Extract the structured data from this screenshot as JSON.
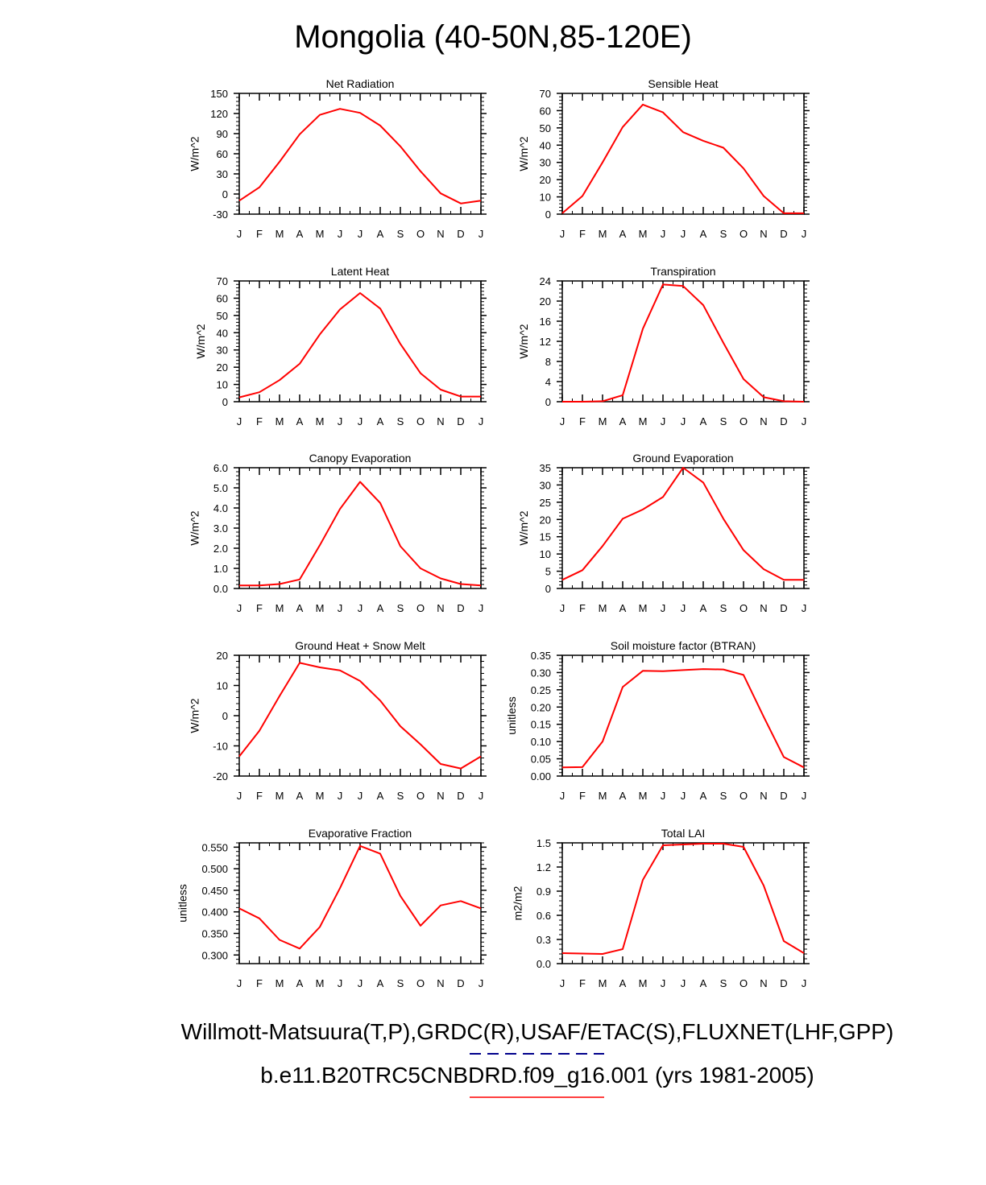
{
  "title": "Mongolia (40-50N,85-120E)",
  "footer": {
    "line1": "Willmott-Matsuura(T,P),GRDC(R),USAF/ETAC(S),FLUXNET(LHF,GPP)",
    "line2": "b.e11.B20TRC5CNBDRD.f09_g16.001 (yrs 1981-2005)"
  },
  "colors": {
    "series": "#ff0000",
    "obs_legend": "#00008b",
    "axis": "#000000"
  },
  "chart_data": [
    {
      "type": "line",
      "title": "Net Radiation",
      "ylabel": "W/m^2",
      "categories": [
        "J",
        "F",
        "M",
        "A",
        "M",
        "J",
        "J",
        "A",
        "S",
        "O",
        "N",
        "D",
        "J"
      ],
      "ylim": [
        -30,
        150
      ],
      "yticks": [
        "-30",
        "0",
        "30",
        "60",
        "90",
        "120",
        "150"
      ],
      "values": [
        -10,
        10,
        48,
        89,
        118,
        127,
        121,
        102,
        71,
        34,
        1,
        -14,
        -10
      ]
    },
    {
      "type": "line",
      "title": "Sensible Heat",
      "ylabel": "W/m^2",
      "categories": [
        "J",
        "F",
        "M",
        "A",
        "M",
        "J",
        "J",
        "A",
        "S",
        "O",
        "N",
        "D",
        "J"
      ],
      "ylim": [
        0,
        70
      ],
      "yticks": [
        "0",
        "10",
        "20",
        "30",
        "40",
        "50",
        "60",
        "70"
      ],
      "values": [
        0.5,
        10.5,
        30,
        50.5,
        63.5,
        59,
        47.5,
        42.5,
        38.5,
        26.5,
        10.5,
        0.5,
        0.5
      ]
    },
    {
      "type": "line",
      "title": "Latent Heat",
      "ylabel": "W/m^2",
      "categories": [
        "J",
        "F",
        "M",
        "A",
        "M",
        "J",
        "J",
        "A",
        "S",
        "O",
        "N",
        "D",
        "J"
      ],
      "ylim": [
        0,
        70
      ],
      "yticks": [
        "0",
        "10",
        "20",
        "30",
        "40",
        "50",
        "60",
        "70"
      ],
      "values": [
        2.5,
        5.5,
        12.5,
        22,
        39,
        53.5,
        63,
        54,
        33.5,
        16.5,
        7,
        3,
        3
      ]
    },
    {
      "type": "line",
      "title": "Transpiration",
      "ylabel": "W/m^2",
      "categories": [
        "J",
        "F",
        "M",
        "A",
        "M",
        "J",
        "J",
        "A",
        "S",
        "O",
        "N",
        "D",
        "J"
      ],
      "ylim": [
        0,
        24
      ],
      "yticks": [
        "0",
        "4",
        "8",
        "12",
        "16",
        "20",
        "24"
      ],
      "values": [
        0,
        0,
        0.1,
        1.3,
        14.5,
        23.3,
        23,
        19.2,
        11.7,
        4.5,
        0.9,
        0.1,
        0
      ]
    },
    {
      "type": "line",
      "title": "Canopy Evaporation",
      "ylabel": "W/m^2",
      "categories": [
        "J",
        "F",
        "M",
        "A",
        "M",
        "J",
        "J",
        "A",
        "S",
        "O",
        "N",
        "D",
        "J"
      ],
      "ylim": [
        0,
        6
      ],
      "yticks": [
        "0.0",
        "1.0",
        "2.0",
        "3.0",
        "4.0",
        "5.0",
        "6.0"
      ],
      "values": [
        0.15,
        0.15,
        0.22,
        0.45,
        2.15,
        3.95,
        5.3,
        4.25,
        2.1,
        1.0,
        0.5,
        0.22,
        0.15
      ]
    },
    {
      "type": "line",
      "title": "Ground Evaporation",
      "ylabel": "W/m^2",
      "categories": [
        "J",
        "F",
        "M",
        "A",
        "M",
        "J",
        "J",
        "A",
        "S",
        "O",
        "N",
        "D",
        "J"
      ],
      "ylim": [
        0,
        35
      ],
      "yticks": [
        "0",
        "5",
        "10",
        "15",
        "20",
        "25",
        "30",
        "35"
      ],
      "values": [
        2.5,
        5.3,
        12.3,
        20.2,
        22.9,
        26.5,
        35,
        30.7,
        20.2,
        11.1,
        5.6,
        2.5,
        2.5
      ]
    },
    {
      "type": "line",
      "title": "Ground Heat + Snow Melt",
      "ylabel": "W/m^2",
      "categories": [
        "J",
        "F",
        "M",
        "A",
        "M",
        "J",
        "J",
        "A",
        "S",
        "O",
        "N",
        "D",
        "J"
      ],
      "ylim": [
        -20,
        20
      ],
      "yticks": [
        "-20",
        "-10",
        "0",
        "10",
        "20"
      ],
      "values": [
        -13.5,
        -5,
        6.5,
        17.5,
        16,
        15,
        11.5,
        5,
        -3.5,
        -9.5,
        -16,
        -17.5,
        -13.5
      ]
    },
    {
      "type": "line",
      "title": "Soil moisture factor (BTRAN)",
      "ylabel": "unitless",
      "categories": [
        "J",
        "F",
        "M",
        "A",
        "M",
        "J",
        "J",
        "A",
        "S",
        "O",
        "N",
        "D",
        "J"
      ],
      "ylim": [
        0,
        0.35
      ],
      "yticks": [
        "0.00",
        "0.05",
        "0.10",
        "0.15",
        "0.20",
        "0.25",
        "0.30",
        "0.35"
      ],
      "values": [
        0.025,
        0.026,
        0.1,
        0.258,
        0.305,
        0.304,
        0.307,
        0.31,
        0.309,
        0.293,
        0.172,
        0.055,
        0.025
      ]
    },
    {
      "type": "line",
      "title": "Evaporative Fraction",
      "ylabel": "unitless",
      "categories": [
        "J",
        "F",
        "M",
        "A",
        "M",
        "J",
        "J",
        "A",
        "S",
        "O",
        "N",
        "D",
        "J"
      ],
      "ylim": [
        0.28,
        0.56
      ],
      "yticks": [
        "0.300",
        "0.350",
        "0.400",
        "0.450",
        "0.500",
        "0.550"
      ],
      "ytickvals": [
        0.3,
        0.35,
        0.4,
        0.45,
        0.5,
        0.55
      ],
      "values": [
        0.408,
        0.385,
        0.335,
        0.315,
        0.365,
        0.455,
        0.553,
        0.535,
        0.437,
        0.368,
        0.415,
        0.425,
        0.408
      ]
    },
    {
      "type": "line",
      "title": "Total LAI",
      "ylabel": "m2/m2",
      "categories": [
        "J",
        "F",
        "M",
        "A",
        "M",
        "J",
        "J",
        "A",
        "S",
        "O",
        "N",
        "D",
        "J"
      ],
      "ylim": [
        0,
        1.5
      ],
      "yticks": [
        "0.0",
        "0.3",
        "0.6",
        "0.9",
        "1.2",
        "1.5"
      ],
      "values": [
        0.13,
        0.125,
        0.12,
        0.18,
        1.04,
        1.47,
        1.48,
        1.49,
        1.49,
        1.45,
        0.97,
        0.28,
        0.13
      ]
    }
  ]
}
